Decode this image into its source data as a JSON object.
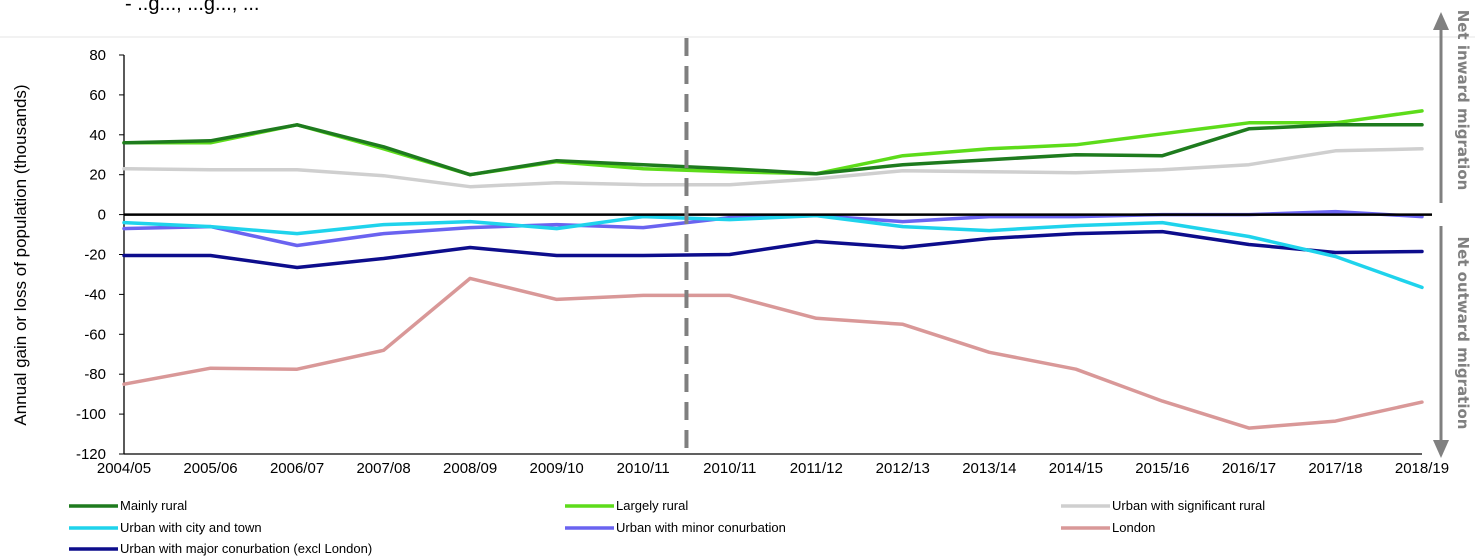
{
  "header_fragment": "- ..g..., ...g..., ...",
  "chart_data": {
    "type": "line",
    "title": "",
    "xlabel": "",
    "ylabel": "Annual gain or loss of population (thousands)",
    "ylim": [
      -120,
      80
    ],
    "yticks": [
      80,
      60,
      40,
      20,
      0,
      -20,
      -40,
      -60,
      -80,
      -100,
      -120
    ],
    "categories": [
      "2004/05",
      "2005/06",
      "2006/07",
      "2007/08",
      "2008/09",
      "2009/10",
      "2010/11",
      "2010/11",
      "2011/12",
      "2012/13",
      "2013/14",
      "2014/15",
      "2015/16",
      "2016/17",
      "2017/18",
      "2018/19"
    ],
    "divider_after_category_index": 6,
    "grid": false,
    "zero_line": true,
    "side_labels": {
      "upper": "Net inward migration",
      "lower": "Net outward migration"
    },
    "legend_position": "bottom",
    "series": [
      {
        "name": "Mainly rural",
        "color": "#1e7b1e",
        "values": [
          36,
          37,
          45,
          34,
          20,
          27,
          25,
          23,
          20.5,
          25,
          27.5,
          30,
          29.5,
          43,
          45,
          45
        ]
      },
      {
        "name": "Largely rural",
        "color": "#5ddc1a",
        "values": [
          36,
          36,
          45,
          33,
          20,
          26.5,
          23,
          21.5,
          20.5,
          29.5,
          33,
          35,
          40.5,
          46,
          46,
          52
        ]
      },
      {
        "name": "Urban with significant rural",
        "color": "#cfcfcf",
        "values": [
          23,
          22.5,
          22.5,
          19.5,
          14,
          16,
          15,
          15,
          18,
          22,
          21.5,
          21,
          22.5,
          25,
          32,
          33
        ]
      },
      {
        "name": "Urban with city and town",
        "color": "#1fd3ec",
        "values": [
          -4,
          -6,
          -9.5,
          -5,
          -3.5,
          -7,
          -1,
          -2.5,
          -0.5,
          -6,
          -8,
          -5.5,
          -4,
          -11,
          -21,
          -36.5
        ]
      },
      {
        "name": "Urban with minor conurbation",
        "color": "#6a63f0",
        "values": [
          -7,
          -6,
          -15.5,
          -9.5,
          -6.5,
          -5,
          -6.5,
          -1.5,
          -0.5,
          -3.5,
          -1,
          -1,
          0,
          0,
          1.5,
          -1
        ]
      },
      {
        "name": "London",
        "color": "#d99898",
        "values": [
          -85,
          -77,
          -77.5,
          -68,
          -32,
          -42.5,
          -40.5,
          -40.5,
          -52,
          -55,
          -69,
          -77.5,
          -93.5,
          -107,
          -103.5,
          -94
        ]
      },
      {
        "name": "Urban with major conurbation (excl London)",
        "color": "#0d0d8c",
        "values": [
          -20.5,
          -20.5,
          -26.5,
          -22,
          -16.5,
          -20.5,
          -20.5,
          -20,
          -13.5,
          -16.5,
          -12,
          -9.5,
          -8.5,
          -15,
          -19,
          -18.5
        ]
      }
    ]
  }
}
